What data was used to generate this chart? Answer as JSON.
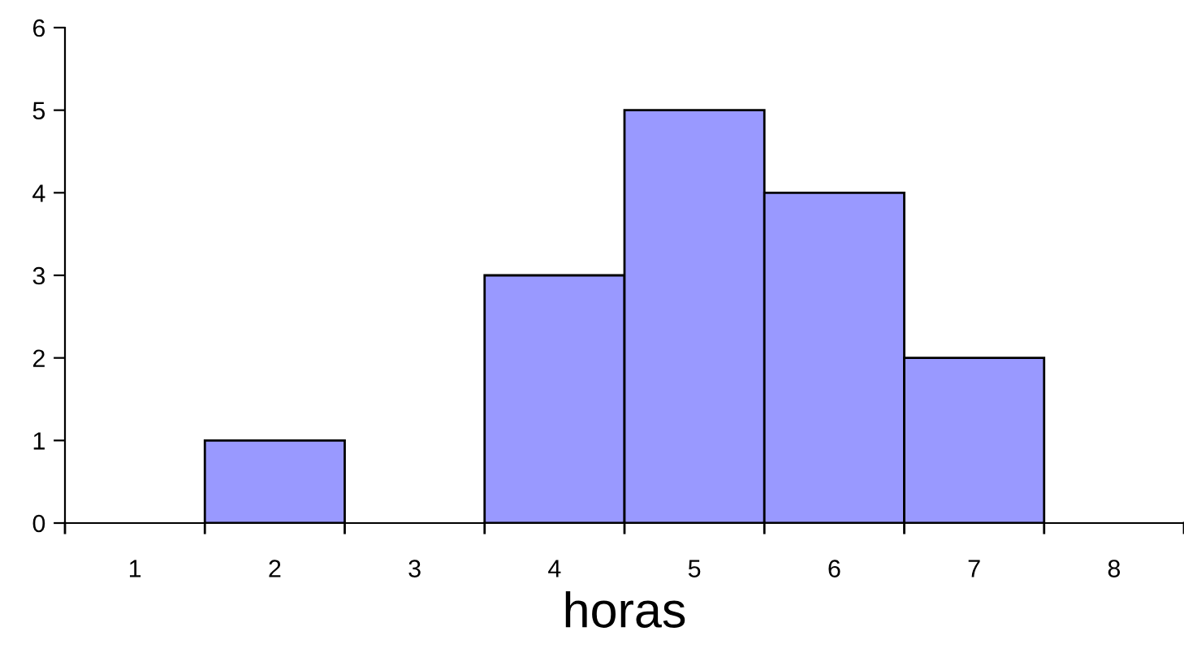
{
  "chart_data": {
    "type": "bar",
    "xlabel": "horas",
    "categories": [
      "1",
      "2",
      "3",
      "4",
      "5",
      "6",
      "7",
      "8"
    ],
    "values": [
      0,
      1,
      0,
      3,
      5,
      4,
      2,
      0
    ],
    "color": "#9999ff",
    "ylim": [
      0,
      6
    ],
    "yticks": [
      0,
      1,
      2,
      3,
      4,
      5,
      6
    ],
    "grid": false,
    "legend": false
  }
}
